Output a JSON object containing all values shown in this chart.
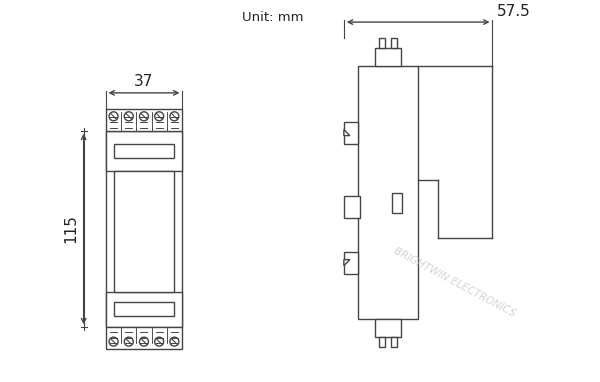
{
  "unit_text": "Unit: mm",
  "dim_37": "37",
  "dim_115": "115",
  "dim_57_5": "57.5",
  "watermark": "BRIGHTWIN ELECTRONICS",
  "bg_color": "#ffffff",
  "line_color": "#444444",
  "dim_line_color": "#444444",
  "watermark_color": "#cccccc",
  "n_screws": 5,
  "screw_r": 4.5
}
